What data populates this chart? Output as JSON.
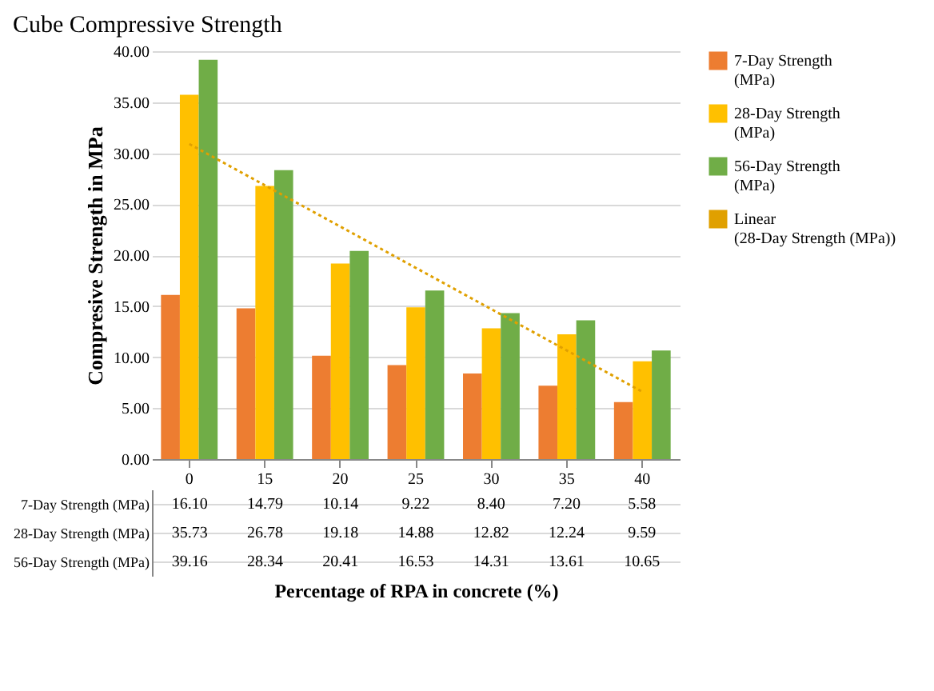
{
  "chart_data": {
    "type": "bar",
    "title": "Cube Compressive Strength",
    "xlabel": "Percentage of RPA in concrete (%)",
    "ylabel": "Compresive Strength in MPa",
    "categories": [
      "0",
      "15",
      "20",
      "25",
      "30",
      "35",
      "40"
    ],
    "ylim": [
      0,
      40
    ],
    "yticks": [
      {
        "value": 0,
        "label": "0.00"
      },
      {
        "value": 5,
        "label": "5.00"
      },
      {
        "value": 10,
        "label": "10.00"
      },
      {
        "value": 15,
        "label": "15.00"
      },
      {
        "value": 20,
        "label": "20.00"
      },
      {
        "value": 25,
        "label": "25.00"
      },
      {
        "value": 30,
        "label": "30.00"
      },
      {
        "value": 35,
        "label": "35.00"
      },
      {
        "value": 40,
        "label": "40.00"
      }
    ],
    "grid": "y",
    "legend": "right",
    "series": [
      {
        "name": "7-Day Strength (MPa)",
        "color": "#ed7d31",
        "values": [
          16.1,
          14.79,
          10.14,
          9.22,
          8.4,
          7.2,
          5.58
        ],
        "value_labels": [
          "16.10",
          "14.79",
          "10.14",
          "9.22",
          "8.40",
          "7.20",
          "5.58"
        ]
      },
      {
        "name": "28-Day Strength (MPa)",
        "color": "#ffc000",
        "values": [
          35.73,
          26.78,
          19.18,
          14.88,
          12.82,
          12.24,
          9.59
        ],
        "value_labels": [
          "35.73",
          "26.78",
          "19.18",
          "14.88",
          "12.82",
          "12.24",
          "9.59"
        ]
      },
      {
        "name": "56-Day Strength (MPa)",
        "color": "#70ad47",
        "values": [
          39.16,
          28.34,
          20.41,
          16.53,
          14.31,
          13.61,
          10.65
        ],
        "value_labels": [
          "39.16",
          "28.34",
          "20.41",
          "16.53",
          "14.31",
          "13.61",
          "10.65"
        ]
      },
      {
        "name": "Linear (28-Day Strength (MPa))",
        "type": "line",
        "color": "#e0a000",
        "line_style": "dotted",
        "x": [
          "0",
          "40"
        ],
        "values": [
          30.9,
          6.6
        ]
      }
    ]
  }
}
